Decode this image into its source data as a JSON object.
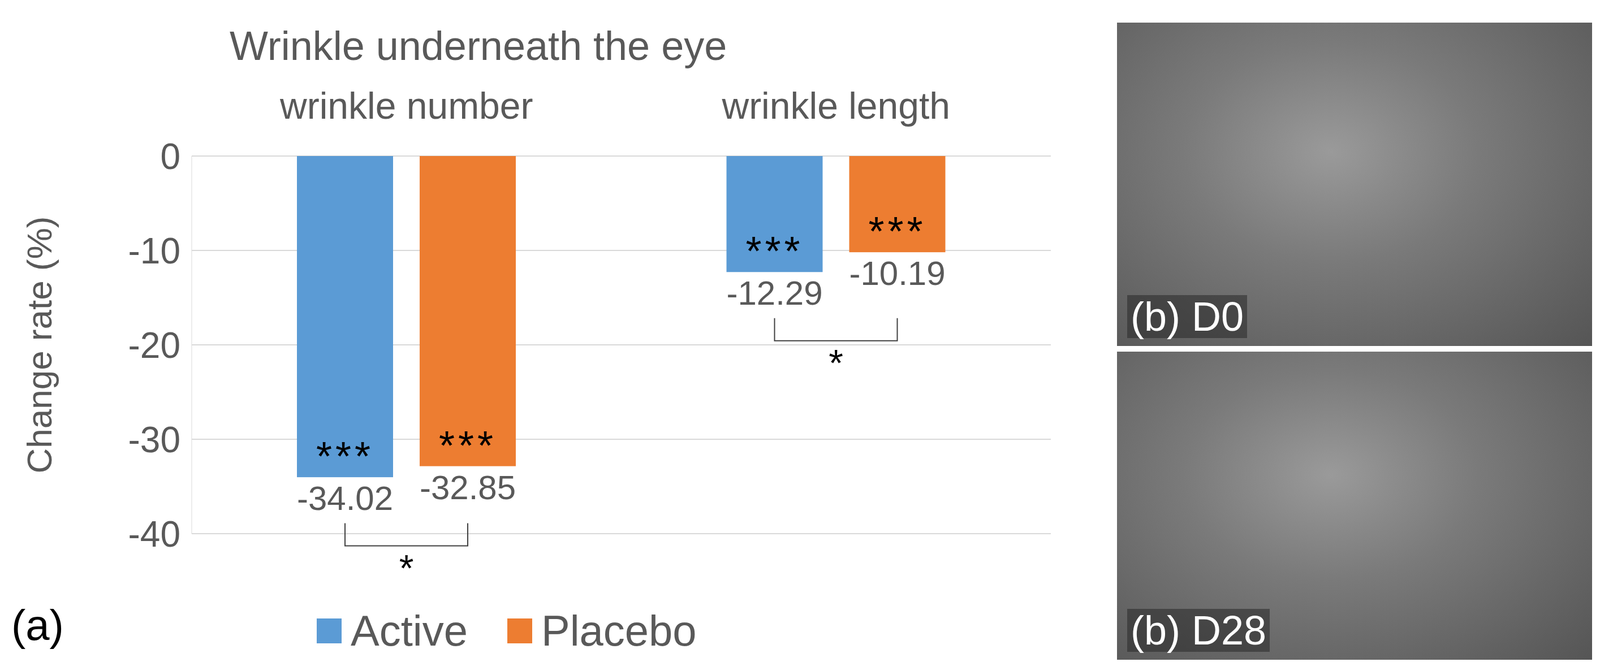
{
  "chart_data": {
    "type": "bar",
    "title": "Wrinkle underneath the eye",
    "panel": "(a)",
    "y_label": "Change rate (%)",
    "categories": [
      "wrinkle number",
      "wrinkle length"
    ],
    "series": [
      {
        "name": "Active",
        "color": "#5b9bd5",
        "values": [
          -34.02,
          -12.29
        ],
        "significance": [
          "***",
          "***"
        ]
      },
      {
        "name": "Placebo",
        "color": "#ed7d31",
        "values": [
          -32.85,
          -10.19
        ],
        "significance": [
          "***",
          "***"
        ]
      }
    ],
    "comparisons": [
      {
        "category": "wrinkle number",
        "label": "*"
      },
      {
        "category": "wrinkle length",
        "label": "*"
      }
    ],
    "ylim": [
      -40,
      0
    ],
    "yticks": [
      0,
      -10,
      -20,
      -30,
      -40
    ],
    "grid": true,
    "legend": "bottom",
    "data_labels": true
  },
  "images": [
    {
      "label": "(b) D0"
    },
    {
      "label": "(b) D28"
    }
  ]
}
